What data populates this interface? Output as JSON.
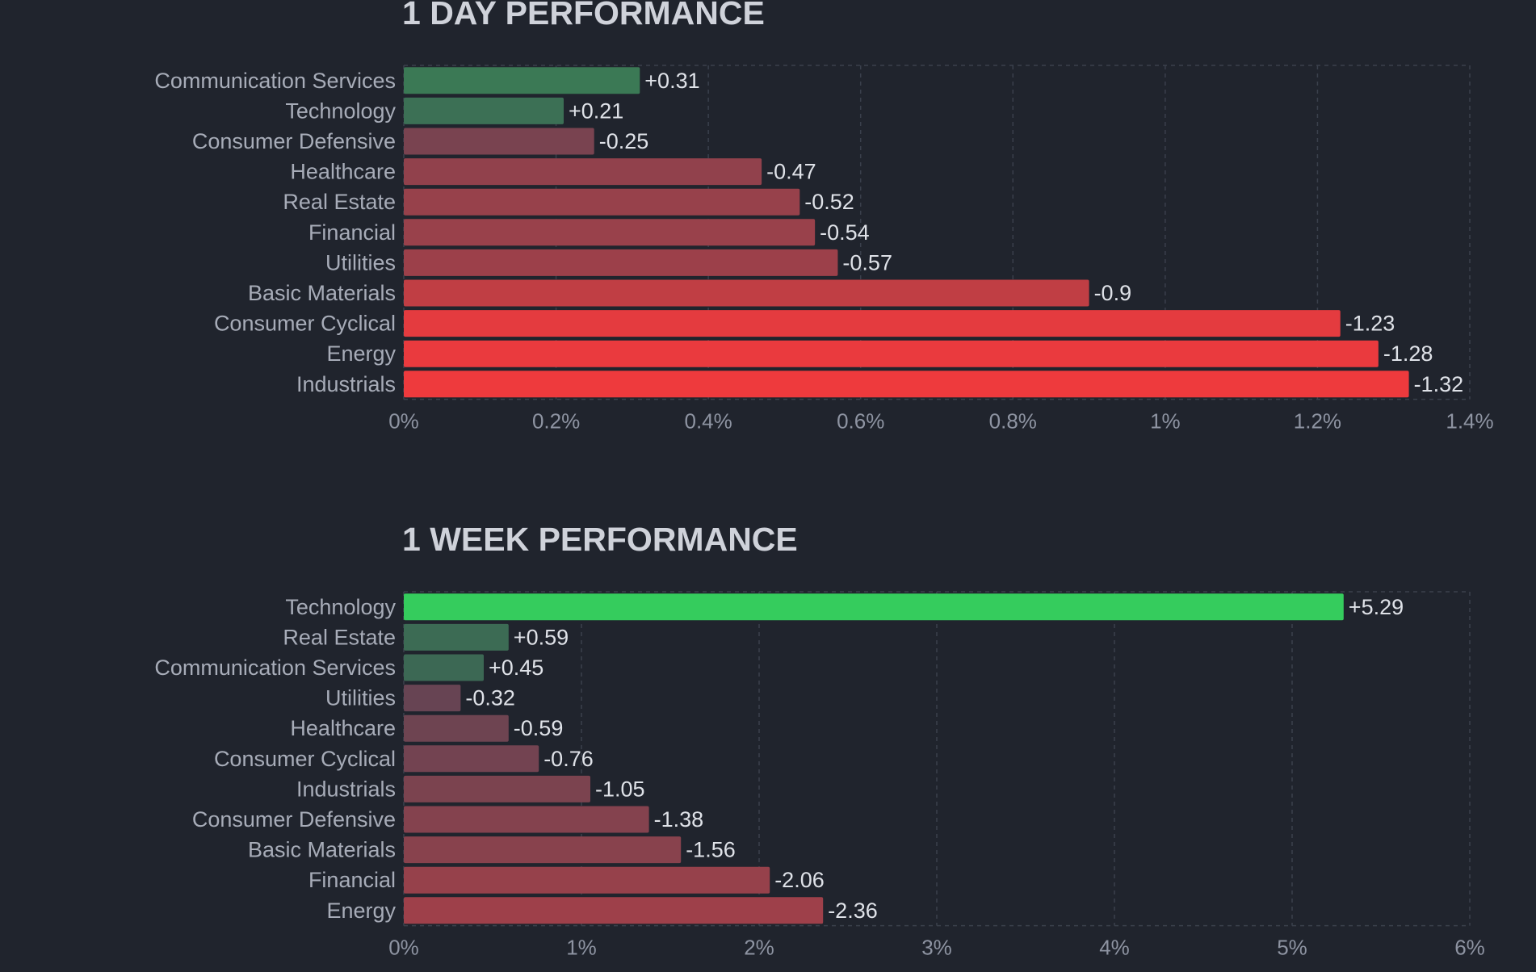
{
  "chart_data": [
    {
      "type": "bar",
      "orientation": "horizontal",
      "title": "1 DAY PERFORMANCE",
      "categories": [
        "Communication Services",
        "Technology",
        "Consumer Defensive",
        "Healthcare",
        "Real Estate",
        "Financial",
        "Utilities",
        "Basic Materials",
        "Consumer Cyclical",
        "Energy",
        "Industrials"
      ],
      "values": [
        0.31,
        0.21,
        -0.25,
        -0.47,
        -0.52,
        -0.54,
        -0.57,
        -0.9,
        -1.23,
        -1.28,
        -1.32
      ],
      "value_labels": [
        "+0.31",
        "+0.21",
        "-0.25",
        "-0.47",
        "-0.52",
        "-0.54",
        "-0.57",
        "-0.9",
        "-1.23",
        "-1.28",
        "-1.32"
      ],
      "xlim": [
        0,
        1.4
      ],
      "ticks": [
        0,
        0.2,
        0.4,
        0.6,
        0.8,
        1,
        1.2,
        1.4
      ],
      "tick_labels": [
        "0%",
        "0.2%",
        "0.4%",
        "0.6%",
        "0.8%",
        "1%",
        "1.2%",
        "1.4%"
      ],
      "grid": true
    },
    {
      "type": "bar",
      "orientation": "horizontal",
      "title": "1 WEEK PERFORMANCE",
      "categories": [
        "Technology",
        "Real Estate",
        "Communication Services",
        "Utilities",
        "Healthcare",
        "Consumer Cyclical",
        "Industrials",
        "Consumer Defensive",
        "Basic Materials",
        "Financial",
        "Energy"
      ],
      "values": [
        5.29,
        0.59,
        0.45,
        -0.32,
        -0.59,
        -0.76,
        -1.05,
        -1.38,
        -1.56,
        -2.06,
        -2.36
      ],
      "value_labels": [
        "+5.29",
        "+0.59",
        "+0.45",
        "-0.32",
        "-0.59",
        "-0.76",
        "-1.05",
        "-1.38",
        "-1.56",
        "-2.06",
        "-2.36"
      ],
      "xlim": [
        0,
        6
      ],
      "ticks": [
        0,
        1,
        2,
        3,
        4,
        5,
        6
      ],
      "tick_labels": [
        "0%",
        "1%",
        "2%",
        "3%",
        "4%",
        "5%",
        "6%"
      ],
      "grid": true
    }
  ],
  "colors": {
    "background": "#20242d",
    "positive_strong": "#35cc5d",
    "positive_weak": "#3d5f53",
    "negative_weak": "#5e4554",
    "negative_strong": "#ee3a3d"
  }
}
